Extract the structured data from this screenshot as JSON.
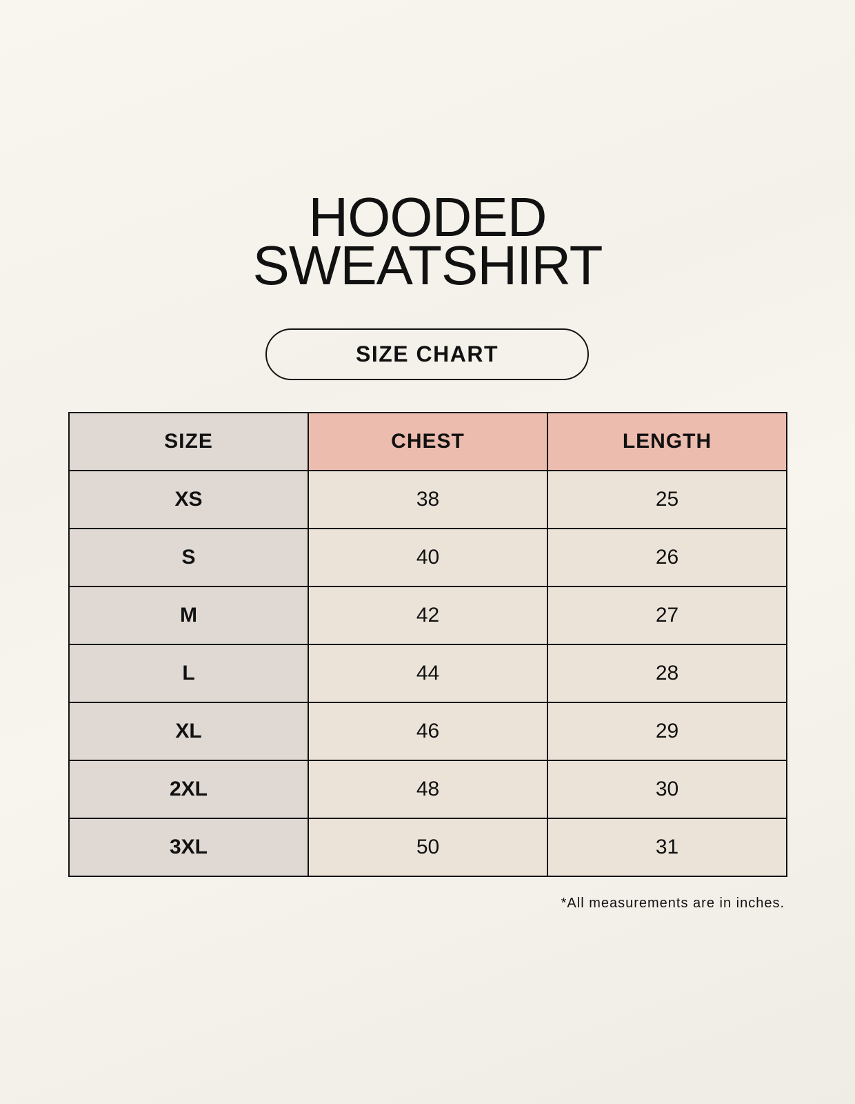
{
  "title": {
    "line1": "HOODED",
    "line2": "SWEATSHIRT"
  },
  "badge": "SIZE CHART",
  "table": {
    "headers": [
      "SIZE",
      "CHEST",
      "LENGTH"
    ],
    "rows": [
      [
        "XS",
        "38",
        "25"
      ],
      [
        "S",
        "40",
        "26"
      ],
      [
        "M",
        "42",
        "27"
      ],
      [
        "L",
        "44",
        "28"
      ],
      [
        "XL",
        "46",
        "29"
      ],
      [
        "2XL",
        "48",
        "30"
      ],
      [
        "3XL",
        "50",
        "31"
      ]
    ]
  },
  "footnote": "*All measurements are in inches.",
  "colors": {
    "size_column": "#e0d9d3",
    "header_accent": "#ecbcae",
    "value_cells": "#ebe3d8"
  }
}
